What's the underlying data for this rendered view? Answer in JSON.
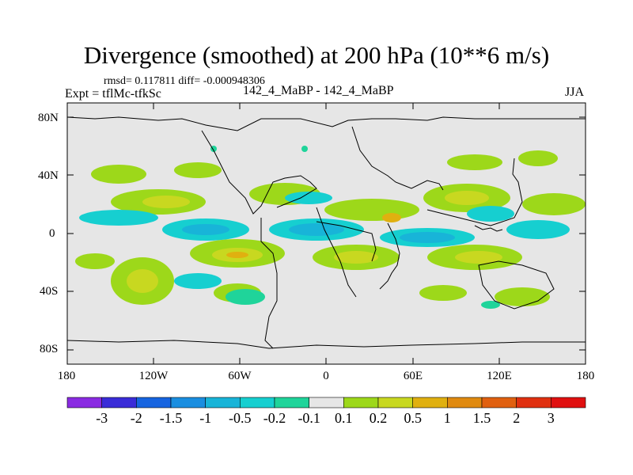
{
  "title": "Divergence (smoothed) at 200 hPa (10**6 m/s)",
  "stats": "rmsd= 0.117811 diff= -0.000948306",
  "experiment": "Expt = tflMc-tfkSc",
  "models": "142_4_MaBP - 142_4_MaBP",
  "season": "JJA",
  "map": {
    "lat_ticks": [
      "80N",
      "40N",
      "0",
      "40S",
      "80S"
    ],
    "lon_ticks": [
      "180",
      "120W",
      "60W",
      "0",
      "60E",
      "120E",
      "180"
    ],
    "land_color": "#e6e6e6"
  },
  "colorbar": {
    "colors": [
      "#8a2be2",
      "#3a2cd8",
      "#1664e0",
      "#1a8ee0",
      "#18b4d8",
      "#16cfd0",
      "#1fd49a",
      "#e6e6e6",
      "#9dd81a",
      "#c8d820",
      "#e0b010",
      "#e08a10",
      "#e06010",
      "#e03010",
      "#e01010"
    ],
    "labels": [
      "-3",
      "-2",
      "-1.5",
      "-1",
      "-0.5",
      "-0.2",
      "-0.1",
      "0.1",
      "0.2",
      "0.5",
      "1",
      "1.5",
      "2",
      "3"
    ]
  },
  "colors": {
    "land": "#e6e6e6",
    "coast": "#000000"
  }
}
